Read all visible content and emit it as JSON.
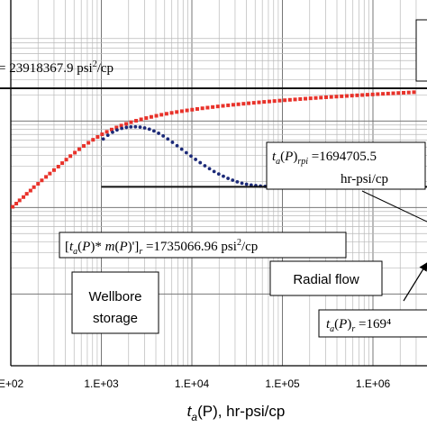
{
  "chart_data": {
    "type": "scatter",
    "title": "",
    "xlabel": "t_a(P), hr-psi/cp",
    "xlabel_parts": {
      "t": "t",
      "sub": "a",
      "rest": "(P), hr-psi/cp"
    },
    "ylabel": "",
    "x_scale": "log",
    "y_scale": "log",
    "grid": true,
    "xticks": [
      {
        "value": 100,
        "label": "E+02"
      },
      {
        "value": 1000,
        "label": "1.E+03"
      },
      {
        "value": 10000,
        "label": "1.E+04"
      },
      {
        "value": 100000,
        "label": "1.E+05"
      },
      {
        "value": 1000000,
        "label": "1.E+06"
      }
    ],
    "series": [
      {
        "marker": "square",
        "color": "#e8322a",
        "x": [
          105,
          115,
          125,
          138,
          150,
          165,
          180,
          200,
          220,
          245,
          270,
          300,
          335,
          370,
          410,
          455,
          510,
          570,
          640,
          720,
          810,
          910,
          1020,
          1150,
          1300,
          1470,
          1660,
          1880,
          2130,
          2420,
          2750,
          3130,
          3560,
          4050,
          4610,
          5250,
          5980,
          6810,
          7760,
          8840,
          10070,
          11470,
          13070,
          14900,
          16980,
          19350,
          22050,
          25130,
          28640,
          32650,
          37210,
          42410,
          48350,
          55120,
          62840,
          71640,
          81680,
          93120,
          106200,
          121000,
          138000,
          157400,
          179500,
          204700,
          233500,
          266300,
          303700,
          346400,
          395100,
          450700,
          514100,
          586400,
          668800,
          762800,
          870000,
          992000,
          1130000,
          1289000,
          1470000,
          1676000,
          1911000,
          2180000,
          2486000,
          2835000
        ],
        "y": [
          1020000.0,
          1110000.0,
          1210000.0,
          1320000.0,
          1440000.0,
          1570000.0,
          1720000.0,
          1880000.0,
          2060000.0,
          2260000.0,
          2470000.0,
          2710000.0,
          2970000.0,
          3260000.0,
          3580000.0,
          3930000.0,
          4310000.0,
          4720000.0,
          5150000.0,
          5600000.0,
          6070000.0,
          6550000.0,
          7030000.0,
          7500000.0,
          7970000.0,
          8420000.0,
          8860000.0,
          9280000.0,
          9690000.0,
          10080000.0,
          10460000.0,
          10820000.0,
          11170000.0,
          11500000.0,
          11820000.0,
          12130000.0,
          12430000.0,
          12720000.0,
          13000000.0,
          13270000.0,
          13530000.0,
          13790000.0,
          14040000.0,
          14280000.0,
          14520000.0,
          14750000.0,
          14980000.0,
          15200000.0,
          15420000.0,
          15630000.0,
          15840000.0,
          16050000.0,
          16250000.0,
          16450000.0,
          16650000.0,
          16840000.0,
          17030000.0,
          17220000.0,
          17410000.0,
          17590000.0,
          17770000.0,
          17950000.0,
          18130000.0,
          18310000.0,
          18480000.0,
          18660000.0,
          18830000.0,
          19000000.0,
          19170000.0,
          19340000.0,
          19500000.0,
          19670000.0,
          19830000.0,
          19990000.0,
          20150000.0,
          20310000.0,
          20470000.0,
          20630000.0,
          20780000.0,
          20940000.0,
          21090000.0,
          21240000.0,
          21390000.0,
          21550000.0
        ]
      },
      {
        "marker": "circle",
        "color": "#1c2a78",
        "x": [
          1050,
          1180,
          1330,
          1490,
          1680,
          1890,
          2120,
          2380,
          2680,
          3010,
          3390,
          3810,
          4290,
          4820,
          5420,
          6100,
          6860,
          7720,
          8680,
          9770,
          10990,
          12360,
          13910,
          15650,
          17600,
          19800,
          22280,
          25070,
          28200,
          31730,
          35700,
          40160,
          45190,
          50840,
          57200,
          64360,
          72410,
          81470,
          91660,
          103100,
          116000,
          130500,
          146900,
          165200,
          185900,
          209200,
          235300,
          264800,
          297900,
          335200,
          377100,
          424300,
          477400,
          537100,
          604300,
          679900,
          765000,
          860700,
          968400,
          1089000,
          1226000,
          1379000,
          1552000,
          1746000,
          1964000,
          2210000,
          2487000,
          2798000
        ],
        "y": [
          6200000.0,
          6850000.0,
          7420000.0,
          7880000.0,
          8220000.0,
          8440000.0,
          8550000.0,
          8580000.0,
          8500000.0,
          8330000.0,
          8050000.0,
          7680000.0,
          7220000.0,
          6720000.0,
          6200000.0,
          5680000.0,
          5180000.0,
          4720000.0,
          4300000.0,
          3930000.0,
          3600000.0,
          3300000.0,
          3040000.0,
          2810000.0,
          2610000.0,
          2440000.0,
          2300000.0,
          2170000.0,
          2070000.0,
          1980000.0,
          1910000.0,
          1860000.0,
          1820000.0,
          1790000.0,
          1770000.0,
          1755000.0,
          1745000.0,
          1740000.0,
          1737000.0,
          1736000.0,
          1735000.0,
          1735000.0,
          1735000.0,
          1735000.0,
          1735000.0,
          1735000.0,
          1735000.0,
          1735000.0,
          1736000.0,
          1737000.0,
          1739000.0,
          1741000.0,
          1744000.0,
          1748000.0,
          1752000.0,
          1757000.0,
          1762000.0,
          1768000.0,
          1774000.0,
          1780000.0,
          1786000.0,
          1792000.0,
          1798000.0,
          1803000.0,
          1808000.0,
          1812000.0,
          1816000.0,
          1820000.0
        ]
      }
    ],
    "reference_lines": [
      {
        "y": 23918367.9,
        "x_from": 50,
        "x_to": 5000000,
        "label": "= 23918367.9 psi²/cp"
      },
      {
        "y": 1735066.96,
        "x_from": 1000,
        "x_to": 5000000,
        "label": "[t_a(P)*m(P)']_r =1735066.96 psi²/cp"
      }
    ],
    "annotations": {
      "trpi": {
        "value": "1694705.5",
        "unit": "hr-psi/cp"
      },
      "tr": {
        "value": "169⁴"
      },
      "wellbore": [
        "Wellbore",
        "storage"
      ],
      "radial": "Radial flow"
    }
  }
}
